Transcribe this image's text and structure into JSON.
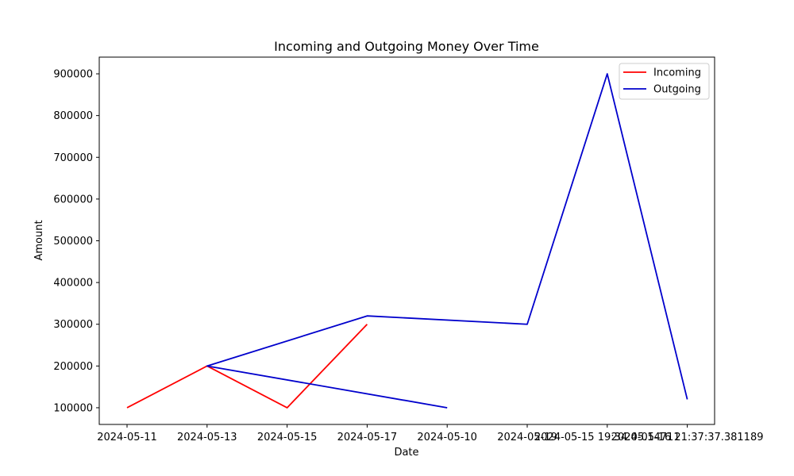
{
  "chart_data": {
    "type": "line",
    "title": "Incoming and Outgoing Money Over Time",
    "xlabel": "Date",
    "ylabel": "Amount",
    "categories": [
      "2024-05-11",
      "2024-05-13",
      "2024-05-15",
      "2024-05-17",
      "2024-05-10",
      "2024-05-19",
      "2024-05-15 19:34:05.14711",
      "2024-05-16 21:37:37.381189"
    ],
    "y_ticks": [
      100000,
      200000,
      300000,
      400000,
      500000,
      600000,
      700000,
      800000,
      900000
    ],
    "ylim": [
      60000,
      940000
    ],
    "series": [
      {
        "name": "Incoming",
        "color": "#ff0000",
        "points": [
          {
            "x": "2024-05-11",
            "y": 100000
          },
          {
            "x": "2024-05-13",
            "y": 200000
          },
          {
            "x": "2024-05-15",
            "y": 100000
          },
          {
            "x": "2024-05-17",
            "y": 300000
          }
        ]
      },
      {
        "name": "Outgoing",
        "color": "#0000cc",
        "points": [
          {
            "x": "2024-05-10",
            "y": 100000
          },
          {
            "x": "2024-05-13",
            "y": 200000
          },
          {
            "x": "2024-05-17",
            "y": 320000
          },
          {
            "x": "2024-05-19",
            "y": 300000
          },
          {
            "x": "2024-05-15 19:34:05.14711",
            "y": 900000
          },
          {
            "x": "2024-05-16 21:37:37.381189",
            "y": 120000
          }
        ]
      }
    ],
    "legend_position": "top-right",
    "grid": false
  }
}
